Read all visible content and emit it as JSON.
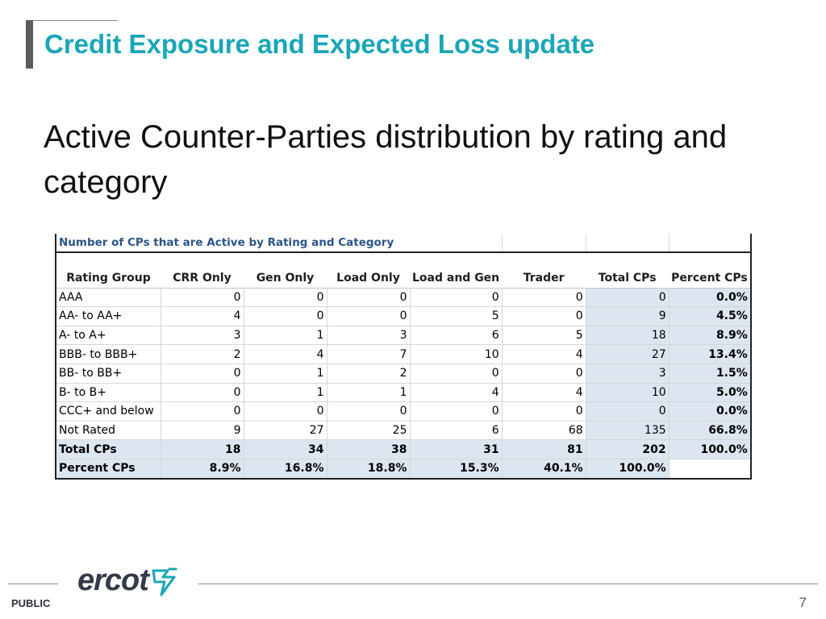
{
  "slide": {
    "title": "Credit Exposure and Expected Loss update",
    "subtitle": "Active Counter-Parties distribution by rating and category",
    "page_number": "7",
    "classification": "PUBLIC",
    "logo_text": "ercot"
  },
  "table": {
    "caption": "Number of CPs that are Active by Rating and Category",
    "headers": [
      "Rating Group",
      "CRR Only",
      "Gen Only",
      "Load Only",
      "Load and Gen",
      "Trader",
      "Total CPs",
      "Percent CPs"
    ],
    "rows": [
      [
        "AAA",
        "0",
        "0",
        "0",
        "0",
        "0",
        "0",
        "0.0%"
      ],
      [
        "AA- to AA+",
        "4",
        "0",
        "0",
        "5",
        "0",
        "9",
        "4.5%"
      ],
      [
        "A- to A+",
        "3",
        "1",
        "3",
        "6",
        "5",
        "18",
        "8.9%"
      ],
      [
        "BBB- to BBB+",
        "2",
        "4",
        "7",
        "10",
        "4",
        "27",
        "13.4%"
      ],
      [
        "BB- to BB+",
        "0",
        "1",
        "2",
        "0",
        "0",
        "3",
        "1.5%"
      ],
      [
        "B- to B+",
        "0",
        "1",
        "1",
        "4",
        "4",
        "10",
        "5.0%"
      ],
      [
        "CCC+ and below",
        "0",
        "0",
        "0",
        "0",
        "0",
        "0",
        "0.0%"
      ],
      [
        "Not Rated",
        "9",
        "27",
        "25",
        "6",
        "68",
        "135",
        "66.8%"
      ]
    ],
    "total_row": [
      "Total CPs",
      "18",
      "34",
      "38",
      "31",
      "81",
      "202",
      "100.0%"
    ],
    "percent_row": [
      "Percent CPs",
      "8.9%",
      "16.8%",
      "18.8%",
      "15.3%",
      "40.1%",
      "100.0%",
      ""
    ]
  },
  "colors": {
    "title": "#1aa6b7",
    "table_caption": "#2c5587",
    "total_fill": "#dce6f1"
  },
  "icons": [
    "ercot-logo-mark-icon"
  ]
}
